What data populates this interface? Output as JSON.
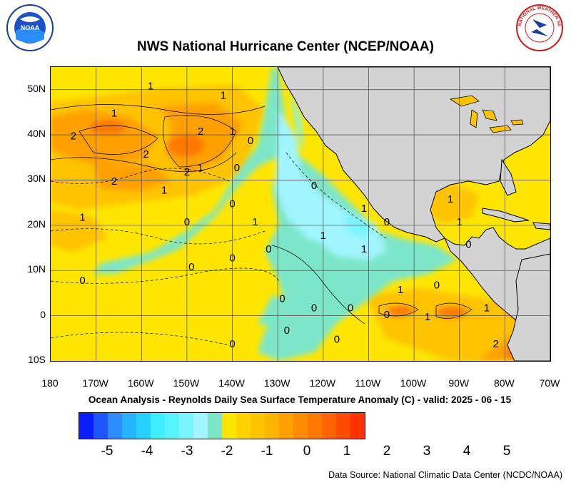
{
  "title": "NWS National Hurricane Center (NCEP/NOAA)",
  "subtitle": "Ocean Analysis - Reynolds Daily Sea Surface Temperature Anomaly (C) - valid: 2025 - 06 - 15",
  "source": "Data Source: National Climatic Data Center (NCDC/NOAA)",
  "logos": {
    "left": "NOAA",
    "right_text": "NATIONAL WEATHER SERVICE"
  },
  "map": {
    "lat_labels": [
      "50N",
      "40N",
      "30N",
      "20N",
      "10N",
      "0",
      "10S"
    ],
    "lon_labels": [
      "180",
      "170W",
      "160W",
      "150W",
      "140W",
      "130W",
      "120W",
      "110W",
      "100W",
      "90W",
      "80W",
      "70W"
    ],
    "lat_range": [
      -10,
      55
    ],
    "lon_range": [
      -180,
      -70
    ],
    "contour_labels": [
      {
        "text": "1",
        "lon": -158,
        "lat": 50
      },
      {
        "text": "1",
        "lon": -142,
        "lat": 48
      },
      {
        "text": "1",
        "lon": -166,
        "lat": 44
      },
      {
        "text": "2",
        "lon": -175,
        "lat": 39
      },
      {
        "text": "2",
        "lon": -147,
        "lat": 40
      },
      {
        "text": "1",
        "lon": -140,
        "lat": 40
      },
      {
        "text": "2",
        "lon": -159,
        "lat": 35
      },
      {
        "text": "0",
        "lon": -136,
        "lat": 38
      },
      {
        "text": "2",
        "lon": -150,
        "lat": 31
      },
      {
        "text": "1",
        "lon": -147,
        "lat": 32
      },
      {
        "text": "2",
        "lon": -166,
        "lat": 29
      },
      {
        "text": "0",
        "lon": -139,
        "lat": 32
      },
      {
        "text": "0",
        "lon": -122,
        "lat": 28
      },
      {
        "text": "1",
        "lon": -155,
        "lat": 27
      },
      {
        "text": "1",
        "lon": -173,
        "lat": 21
      },
      {
        "text": "0",
        "lon": -140,
        "lat": 24
      },
      {
        "text": "0",
        "lon": -150,
        "lat": 20
      },
      {
        "text": "1",
        "lon": -135,
        "lat": 20
      },
      {
        "text": "1",
        "lon": -111,
        "lat": 23
      },
      {
        "text": "0",
        "lon": -106,
        "lat": 20
      },
      {
        "text": "1",
        "lon": -120,
        "lat": 17
      },
      {
        "text": "1",
        "lon": -111,
        "lat": 14
      },
      {
        "text": "0",
        "lon": -132,
        "lat": 14
      },
      {
        "text": "0",
        "lon": -140,
        "lat": 12
      },
      {
        "text": "0",
        "lon": -149,
        "lat": 10
      },
      {
        "text": "1",
        "lon": -92,
        "lat": 25
      },
      {
        "text": "1",
        "lon": -90,
        "lat": 20
      },
      {
        "text": "0",
        "lon": -88,
        "lat": 15
      },
      {
        "text": "0",
        "lon": -173,
        "lat": 7
      },
      {
        "text": "1",
        "lon": -103,
        "lat": 5
      },
      {
        "text": "0",
        "lon": -95,
        "lat": 6
      },
      {
        "text": "0",
        "lon": -129,
        "lat": 3
      },
      {
        "text": "0",
        "lon": -122,
        "lat": 1
      },
      {
        "text": "0",
        "lon": -114,
        "lat": 1
      },
      {
        "text": "0",
        "lon": -106,
        "lat": -0.5
      },
      {
        "text": "1",
        "lon": -84,
        "lat": 1
      },
      {
        "text": "1",
        "lon": -97,
        "lat": -1
      },
      {
        "text": "0",
        "lon": -128,
        "lat": -4
      },
      {
        "text": "0",
        "lon": -117,
        "lat": -6
      },
      {
        "text": "0",
        "lon": -140,
        "lat": -7
      },
      {
        "text": "2",
        "lon": -82,
        "lat": -7
      }
    ]
  },
  "colorbar": {
    "colors": [
      "#0a1eff",
      "#1e55ff",
      "#2a8cff",
      "#25b4ff",
      "#25d2ff",
      "#3ceeff",
      "#55f5ff",
      "#78f5ff",
      "#a0f5ff",
      "#7de6c8",
      "#ffe600",
      "#ffd200",
      "#ffc300",
      "#ffb400",
      "#ffa000",
      "#ff8c00",
      "#ff7800",
      "#ff6400",
      "#ff4b00",
      "#ff3200"
    ],
    "labels": [
      "-5",
      "-4",
      "-3",
      "-2",
      "-1",
      "0",
      "1",
      "2",
      "3",
      "4",
      "5"
    ]
  }
}
